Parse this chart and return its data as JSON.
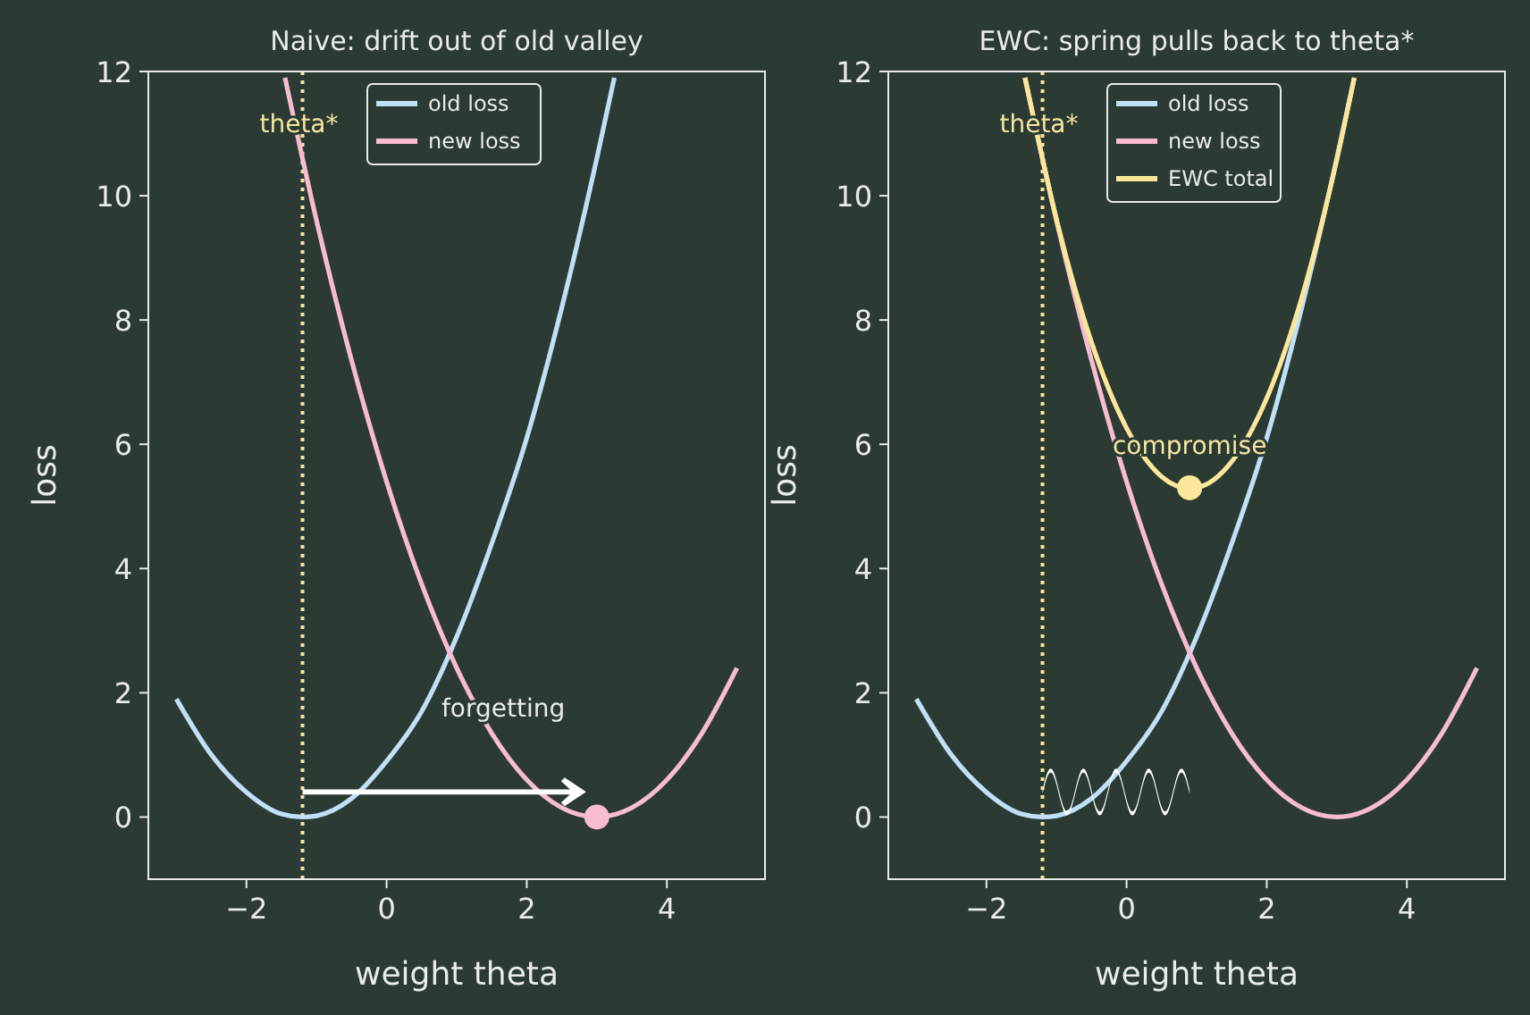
{
  "chart_data": [
    {
      "type": "line",
      "title": "Naive: drift out of old valley",
      "xlabel": "weight  theta",
      "ylabel": "loss",
      "xlim": [
        -3.4,
        5.4
      ],
      "ylim": [
        -1,
        12
      ],
      "xticks": [
        -2,
        0,
        2,
        4
      ],
      "yticks": [
        0,
        2,
        4,
        6,
        8,
        10,
        12
      ],
      "legend": "top",
      "grid": false,
      "line_style": "solid",
      "series": [
        {
          "name": "old loss",
          "color": "#bfe0f7",
          "x": [
            -3,
            -2.5,
            -2,
            -1.5,
            -1.2,
            -1,
            -0.5,
            0,
            0.5,
            1,
            1.5,
            2,
            2.5,
            3,
            3.25
          ],
          "values": [
            1.9,
            1.0,
            0.4,
            0.05,
            0,
            0.02,
            0.3,
            0.9,
            1.7,
            2.9,
            4.4,
            6.1,
            8.2,
            10.6,
            11.9
          ]
        },
        {
          "name": "new loss",
          "color": "#f7bcd0",
          "x": [
            -1.45,
            -1,
            -0.5,
            0,
            0.5,
            1,
            1.5,
            2,
            2.5,
            3,
            3.5,
            4,
            4.5,
            5
          ],
          "values": [
            11.9,
            9.6,
            7.35,
            5.4,
            3.75,
            2.4,
            1.35,
            0.6,
            0.15,
            0,
            0.15,
            0.6,
            1.35,
            2.4
          ]
        },
        {
          "type": "scatter",
          "color": "#f7bcd0",
          "x": [
            3
          ],
          "values": [
            0
          ]
        }
      ],
      "ref_lines": [
        {
          "axis": "x",
          "value": -1.2,
          "label": "theta*",
          "color": "#f5e6a0",
          "line_style": "dotted"
        }
      ],
      "annotations": [
        "forgetting"
      ]
    },
    {
      "type": "line",
      "title": "EWC: spring pulls back to theta*",
      "xlabel": "weight  theta",
      "ylabel": "loss",
      "xlim": [
        -3.4,
        5.4
      ],
      "ylim": [
        -1,
        12
      ],
      "xticks": [
        -2,
        0,
        2,
        4
      ],
      "yticks": [
        0,
        2,
        4,
        6,
        8,
        10,
        12
      ],
      "legend": "top",
      "grid": false,
      "line_style": "solid",
      "series": [
        {
          "name": "old loss",
          "color": "#bfe0f7",
          "x": [
            -3,
            -2.5,
            -2,
            -1.5,
            -1.2,
            -1,
            -0.5,
            0,
            0.5,
            1,
            1.5,
            2,
            2.5,
            3,
            3.25
          ],
          "values": [
            1.9,
            1.0,
            0.4,
            0.05,
            0,
            0.02,
            0.3,
            0.9,
            1.7,
            2.9,
            4.4,
            6.1,
            8.2,
            10.6,
            11.9
          ]
        },
        {
          "name": "new loss",
          "color": "#f7bcd0",
          "x": [
            -1.45,
            -1,
            -0.5,
            0,
            0.5,
            1,
            1.5,
            2,
            2.5,
            3,
            3.5,
            4,
            4.5,
            5
          ],
          "values": [
            11.9,
            9.6,
            7.35,
            5.4,
            3.75,
            2.4,
            1.35,
            0.6,
            0.15,
            0,
            0.15,
            0.6,
            1.35,
            2.4
          ]
        },
        {
          "name": "EWC total",
          "color": "#fbe69a",
          "x": [
            -1.45,
            -1,
            -0.5,
            0,
            0.5,
            0.9,
            1,
            1.5,
            2,
            2.5,
            3,
            3.25
          ],
          "values": [
            11.9,
            9.62,
            7.64,
            6.26,
            5.48,
            5.29,
            5.3,
            5.72,
            6.74,
            8.36,
            10.58,
            11.9
          ]
        },
        {
          "type": "scatter",
          "color": "#fbe69a",
          "x": [
            0.9
          ],
          "values": [
            5.3
          ]
        }
      ],
      "ref_lines": [
        {
          "axis": "x",
          "value": -1.2,
          "label": "theta*",
          "color": "#f5e6a0",
          "line_style": "dotted"
        }
      ],
      "annotations": [
        "compromise"
      ]
    }
  ]
}
